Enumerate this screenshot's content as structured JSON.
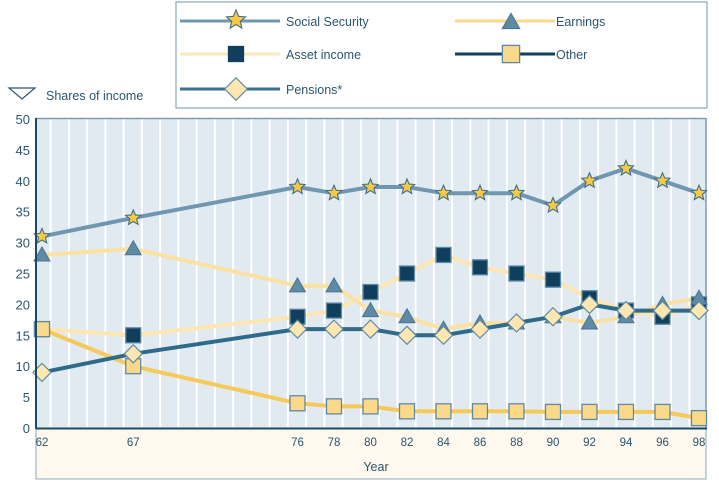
{
  "chart_data": {
    "type": "line",
    "title": "",
    "xlabel": "Year",
    "ylabel": "Shares of income",
    "ylim": [
      0,
      50
    ],
    "yticks": [
      0,
      5,
      10,
      15,
      20,
      25,
      30,
      35,
      40,
      45,
      50
    ],
    "x": [
      1962,
      1967,
      1976,
      1978,
      1980,
      1982,
      1984,
      1986,
      1988,
      1990,
      1992,
      1994,
      1996,
      1998
    ],
    "xtick_labels": [
      "62",
      "67",
      "76",
      "78",
      "80",
      "82",
      "84",
      "86",
      "88",
      "90",
      "92",
      "94",
      "96",
      "98"
    ],
    "xlim": [
      1962,
      1998
    ],
    "grid": "vertical stripes per year",
    "legend_position": "top",
    "footnote_marker": "*",
    "series": [
      {
        "name": "Social Security",
        "marker": "star",
        "line_color": "#6f97b0",
        "marker_fill": "#f6c945",
        "marker_stroke": "#3f6f8c",
        "legend_line_color": "#6f97b0",
        "values": [
          31,
          34,
          39,
          38,
          39,
          39,
          38,
          38,
          38,
          36,
          40,
          42,
          40,
          38
        ]
      },
      {
        "name": "Earnings",
        "marker": "triangle",
        "line_color": "#fbe1a2",
        "marker_fill": "#5e8aa6",
        "marker_stroke": "#4a7693",
        "legend_line_color": "#f9d98a",
        "values": [
          28,
          29,
          23,
          23,
          19,
          18,
          16,
          17,
          17,
          18,
          17,
          18,
          20,
          21
        ]
      },
      {
        "name": "Asset income",
        "marker": "square",
        "line_color": "#fde6b0",
        "marker_fill": "#0f3f5c",
        "marker_stroke": "#5e8aa6",
        "legend_line_color": "#fbe9c0",
        "values": [
          16,
          15,
          18,
          19,
          22,
          25,
          28,
          26,
          25,
          24,
          21,
          19,
          18,
          20
        ]
      },
      {
        "name": "Other",
        "marker": "square",
        "line_color": "#f5c95a",
        "marker_fill": "#fad98a",
        "marker_stroke": "#5e8aa6",
        "legend_line_color": "#113f5c",
        "values": [
          16,
          10,
          4,
          3.5,
          3.5,
          2.7,
          2.7,
          2.7,
          2.7,
          2.6,
          2.6,
          2.6,
          2.6,
          1.6
        ]
      },
      {
        "name": "Pensions*",
        "marker": "diamond",
        "line_color": "#2e6a8a",
        "marker_fill": "#fde6b0",
        "marker_stroke": "#5e8aa6",
        "legend_line_color": "#3a7192",
        "values": [
          9,
          12,
          16,
          16,
          16,
          15,
          15,
          16,
          17,
          18,
          20,
          19,
          19,
          19
        ]
      }
    ]
  },
  "legend": {
    "items": [
      {
        "label": "Social Security"
      },
      {
        "label": "Earnings"
      },
      {
        "label": "Asset income"
      },
      {
        "label": "Other"
      },
      {
        "label": "Pensions*"
      }
    ]
  },
  "colors": {
    "plot_bg": "#e1e9f1",
    "stripe": "#ffffff",
    "xaxis_panel_bg": "#fef8ee",
    "axis_dark": "#1d4a63",
    "frame": "#8aa8bc"
  }
}
